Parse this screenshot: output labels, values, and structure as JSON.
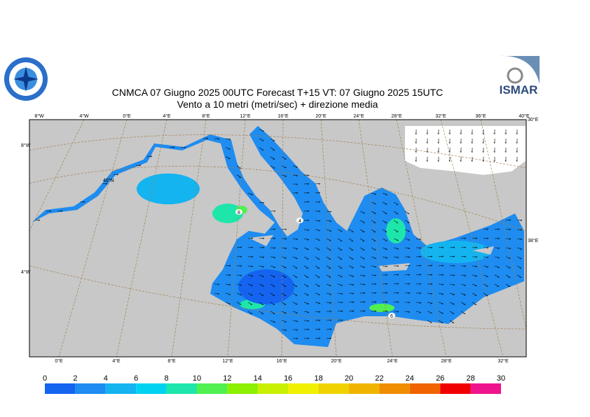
{
  "header": {
    "title_line1": "CNMCA 07   Giugno  2025 00UTC Forecast T+15 VT: 07   Giugno  2025 15UTC",
    "title_line2": "Vento a 10 metri (metri/sec) + direzione media"
  },
  "logos": {
    "right_text": "ISMAR"
  },
  "map": {
    "top_labels": [
      "8°W",
      "4°W",
      "0°E",
      "4°E",
      "8°E",
      "12°E",
      "16°E",
      "20°E",
      "24°E",
      "28°E",
      "32°E",
      "36°E",
      "40°E"
    ],
    "bottom_labels": [
      "0°E",
      "4°E",
      "8°E",
      "12°E",
      "16°E",
      "20°E",
      "24°E",
      "28°E",
      "32°E"
    ],
    "left_labels": [
      "8°W",
      "40°N",
      "4°W"
    ],
    "right_labels": [
      "30°E",
      "38°E"
    ],
    "contour_labels": [
      "8",
      "4",
      "6"
    ]
  },
  "colorbar": {
    "ticks": [
      0,
      2,
      4,
      6,
      8,
      10,
      12,
      14,
      16,
      18,
      20,
      22,
      24,
      26,
      28,
      30
    ],
    "colors": [
      "#1464f0",
      "#1e8cf0",
      "#14b4f0",
      "#00d2f0",
      "#1ee6aa",
      "#50f050",
      "#8cf000",
      "#c8f000",
      "#f0f000",
      "#f0d200",
      "#f0b400",
      "#f08c00",
      "#f06400",
      "#f00000",
      "#f0148c"
    ]
  }
}
